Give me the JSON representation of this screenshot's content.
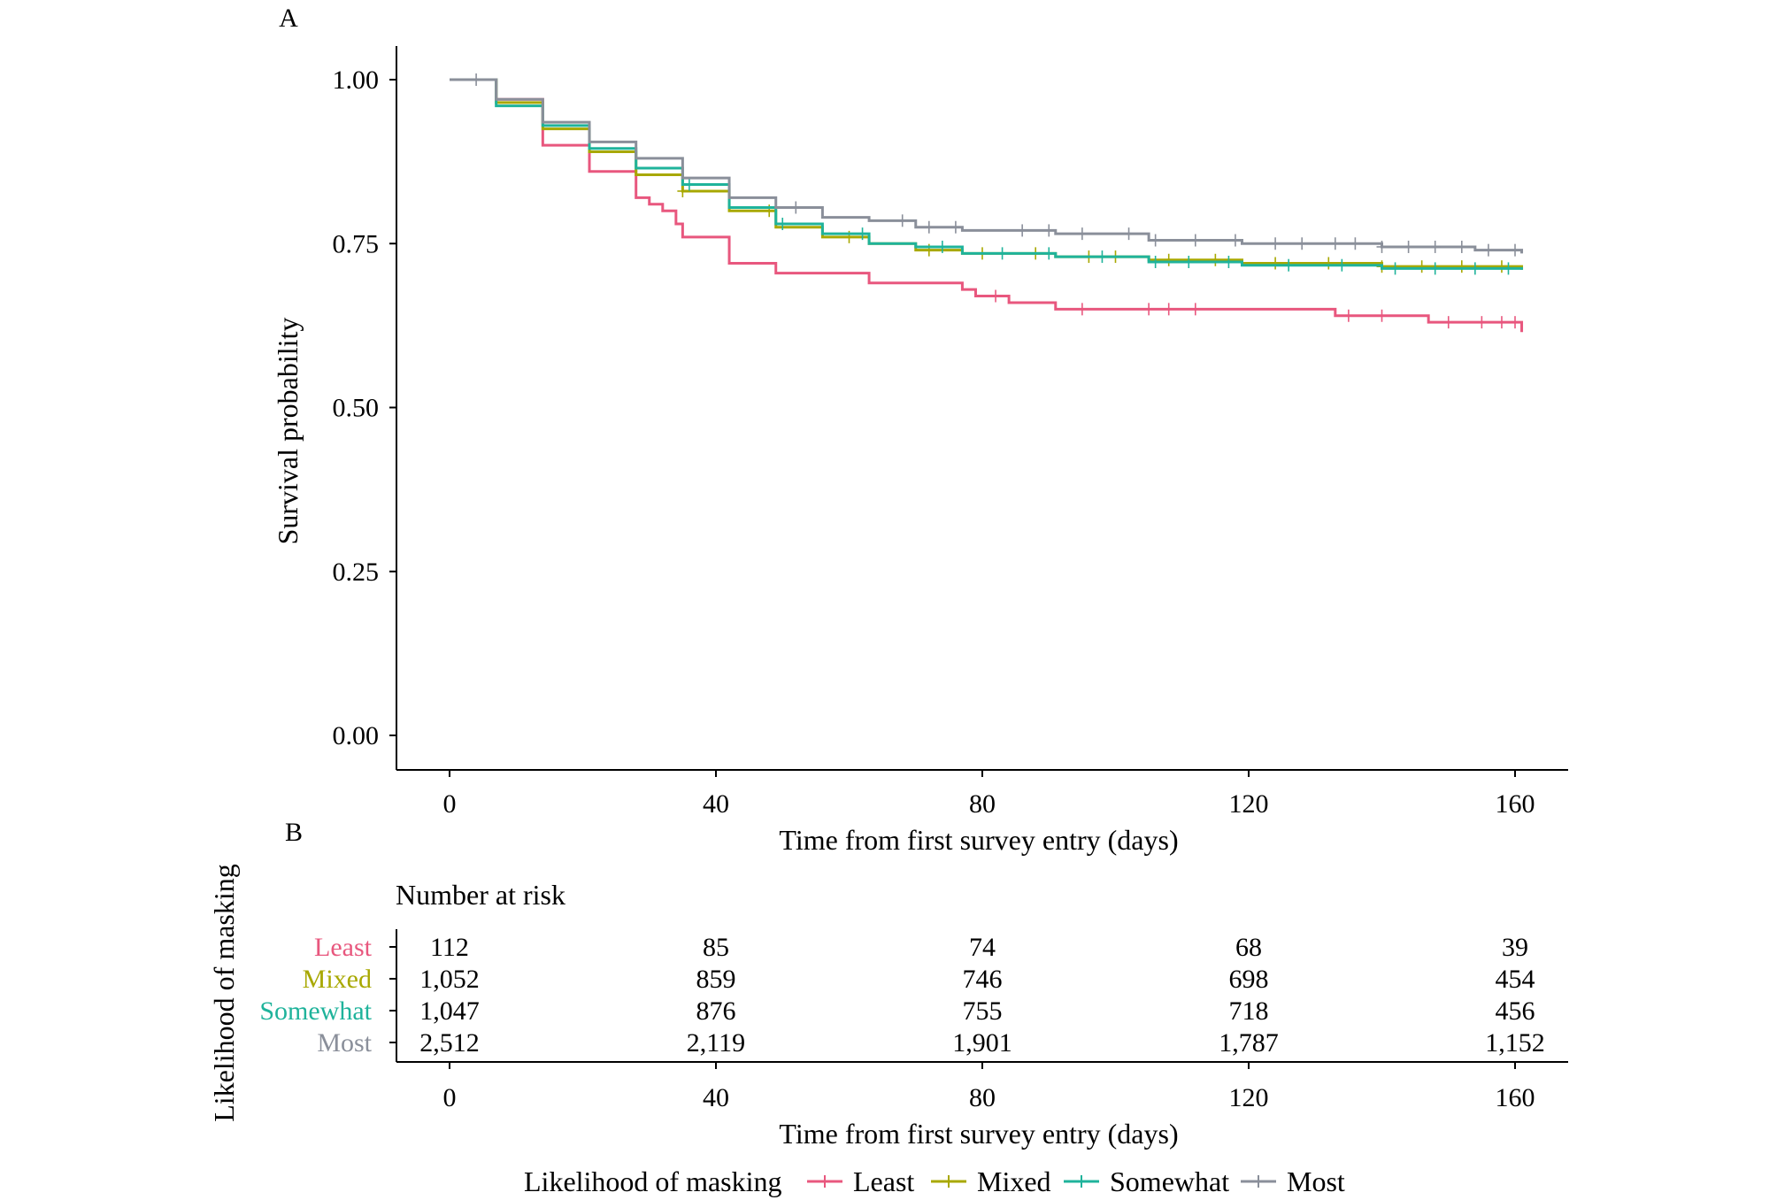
{
  "panel_a_label": "A",
  "panel_b_label": "B",
  "chart_data": [
    {
      "type": "line",
      "subtype": "kaplan-meier step",
      "title": "",
      "xlabel": "Time from first survey entry (days)",
      "ylabel": "Survival probability",
      "xlim": [
        -8,
        168
      ],
      "ylim": [
        -0.05,
        1.05
      ],
      "x_ticks": [
        0,
        40,
        80,
        120,
        160
      ],
      "x_tick_labels": [
        "0",
        "40",
        "80",
        "120",
        "160"
      ],
      "y_ticks": [
        0,
        0.25,
        0.5,
        0.75,
        1.0
      ],
      "y_tick_labels": [
        "0.00",
        "0.25",
        "0.50",
        "0.75",
        "1.00"
      ],
      "grid": false,
      "legend_position": "bottom",
      "series": [
        {
          "name": "Least",
          "color": "#e8577e",
          "x": [
            0,
            7,
            14,
            21,
            28,
            30,
            32,
            34,
            35,
            42,
            49,
            63,
            77,
            79,
            84,
            91,
            133,
            147,
            161
          ],
          "y": [
            1.0,
            0.97,
            0.9,
            0.86,
            0.82,
            0.81,
            0.8,
            0.78,
            0.76,
            0.72,
            0.705,
            0.69,
            0.68,
            0.67,
            0.66,
            0.65,
            0.64,
            0.63,
            0.615
          ],
          "censor_x": [
            82,
            95,
            105,
            108,
            112,
            135,
            140,
            150,
            155,
            158,
            160
          ]
        },
        {
          "name": "Mixed",
          "color": "#a8a800",
          "x": [
            0,
            7,
            14,
            21,
            28,
            35,
            42,
            49,
            56,
            63,
            70,
            77,
            91,
            105,
            119,
            140,
            161
          ],
          "y": [
            1.0,
            0.965,
            0.925,
            0.89,
            0.855,
            0.83,
            0.8,
            0.775,
            0.76,
            0.75,
            0.74,
            0.735,
            0.73,
            0.725,
            0.72,
            0.715,
            0.71
          ],
          "censor_x": [
            35,
            48,
            60,
            72,
            80,
            88,
            96,
            100,
            108,
            115,
            124,
            132,
            140,
            146,
            152,
            158
          ]
        },
        {
          "name": "Somewhat",
          "color": "#1fb39b",
          "x": [
            0,
            7,
            14,
            21,
            28,
            35,
            42,
            49,
            56,
            63,
            70,
            77,
            91,
            105,
            119,
            140,
            161
          ],
          "y": [
            1.0,
            0.96,
            0.93,
            0.895,
            0.865,
            0.84,
            0.805,
            0.78,
            0.765,
            0.75,
            0.745,
            0.735,
            0.73,
            0.722,
            0.717,
            0.712,
            0.71
          ],
          "censor_x": [
            36,
            50,
            62,
            74,
            83,
            90,
            98,
            106,
            111,
            117,
            126,
            134,
            142,
            148,
            154,
            159
          ]
        },
        {
          "name": "Most",
          "color": "#8a8f9a",
          "x": [
            0,
            7,
            14,
            21,
            28,
            35,
            42,
            49,
            56,
            63,
            70,
            77,
            91,
            105,
            119,
            140,
            154,
            161
          ],
          "y": [
            1.0,
            0.97,
            0.935,
            0.905,
            0.88,
            0.85,
            0.82,
            0.805,
            0.79,
            0.785,
            0.775,
            0.77,
            0.765,
            0.755,
            0.75,
            0.745,
            0.74,
            0.735
          ],
          "censor_x": [
            4,
            52,
            68,
            72,
            76,
            86,
            90,
            95,
            102,
            106,
            112,
            118,
            124,
            128,
            133,
            136,
            140,
            144,
            148,
            152,
            156,
            160
          ]
        }
      ]
    },
    {
      "type": "table",
      "title": "Number at risk",
      "xlabel": "Time from first survey entry (days)",
      "ylabel": "Likelihood of masking",
      "x_ticks": [
        0,
        40,
        80,
        120,
        160
      ],
      "x_tick_labels": [
        "0",
        "40",
        "80",
        "120",
        "160"
      ],
      "rows": [
        {
          "name": "Least",
          "color": "#e8577e",
          "values": [
            "112",
            "85",
            "74",
            "68",
            "39"
          ]
        },
        {
          "name": "Mixed",
          "color": "#a8a800",
          "values": [
            "1,052",
            "859",
            "746",
            "698",
            "454"
          ]
        },
        {
          "name": "Somewhat",
          "color": "#1fb39b",
          "values": [
            "1,047",
            "876",
            "755",
            "718",
            "456"
          ]
        },
        {
          "name": "Most",
          "color": "#8a8f9a",
          "values": [
            "2,512",
            "2,119",
            "1,901",
            "1,787",
            "1,152"
          ]
        }
      ]
    }
  ],
  "legend": {
    "title": "Likelihood of masking",
    "items": [
      {
        "label": "Least",
        "color": "#e8577e"
      },
      {
        "label": "Mixed",
        "color": "#a8a800"
      },
      {
        "label": "Somewhat",
        "color": "#1fb39b"
      },
      {
        "label": "Most",
        "color": "#8a8f9a"
      }
    ]
  }
}
